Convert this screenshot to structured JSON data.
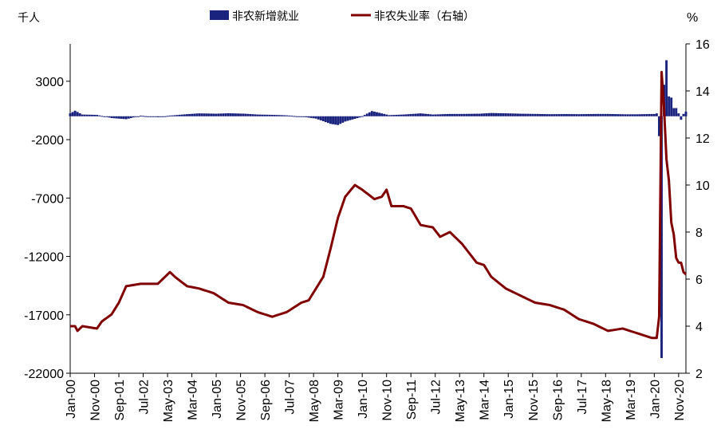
{
  "chart_data": {
    "type": "bar+line",
    "title": "",
    "left_axis": {
      "unit_label": "千人",
      "ticks": [
        3000,
        -2000,
        -7000,
        -12000,
        -17000,
        -22000
      ],
      "range": [
        -22000,
        6200
      ]
    },
    "right_axis": {
      "unit_label": "%",
      "ticks": [
        2,
        4,
        6,
        8,
        10,
        12,
        14,
        16
      ],
      "range": [
        2,
        16
      ]
    },
    "x_tick_labels": [
      "Jan-00",
      "Nov-00",
      "Sep-01",
      "Jul-02",
      "May-03",
      "Mar-04",
      "Jan-05",
      "Nov-05",
      "Sep-06",
      "Jul-07",
      "May-08",
      "Mar-09",
      "Jan-10",
      "Nov-10",
      "Sep-11",
      "Jul-12",
      "May-13",
      "Mar-14",
      "Jan-15",
      "Nov-15",
      "Sep-16",
      "Jul-17",
      "May-18",
      "Mar-19",
      "Jan-20",
      "Nov-20"
    ],
    "x_range": [
      "Jan-00",
      "Feb-21"
    ],
    "legend": {
      "placement": "top",
      "items": [
        {
          "label": "非农新增就业",
          "kind": "bar",
          "color": "#1a237e"
        },
        {
          "label": "非农失业率（右轴）",
          "kind": "line",
          "color": "#800000"
        }
      ]
    },
    "series": [
      {
        "name": "非农新增就业",
        "kind": "bar",
        "axis": "left",
        "color": "#1a237e",
        "unit": "千人",
        "points": [
          [
            "Jan-00",
            250
          ],
          [
            "Mar-00",
            480
          ],
          [
            "Jun-00",
            150
          ],
          [
            "Dec-00",
            120
          ],
          [
            "Jun-01",
            -150
          ],
          [
            "Dec-01",
            -250
          ],
          [
            "Jun-02",
            50
          ],
          [
            "Jan-03",
            -80
          ],
          [
            "Jun-03",
            60
          ],
          [
            "Jan-04",
            180
          ],
          [
            "Jun-04",
            250
          ],
          [
            "Jan-05",
            220
          ],
          [
            "Jun-05",
            260
          ],
          [
            "Jan-06",
            220
          ],
          [
            "Jun-06",
            150
          ],
          [
            "Jan-07",
            120
          ],
          [
            "Jun-07",
            80
          ],
          [
            "Jan-08",
            -50
          ],
          [
            "Jun-08",
            -200
          ],
          [
            "Dec-08",
            -650
          ],
          [
            "Mar-09",
            -750
          ],
          [
            "Jun-09",
            -450
          ],
          [
            "Dec-09",
            -100
          ],
          [
            "May-10",
            450
          ],
          [
            "Dec-10",
            100
          ],
          [
            "Jun-11",
            150
          ],
          [
            "Jan-12",
            250
          ],
          [
            "Jun-12",
            150
          ],
          [
            "Jan-13",
            200
          ],
          [
            "Jun-13",
            200
          ],
          [
            "Jan-14",
            220
          ],
          [
            "Jun-14",
            280
          ],
          [
            "Jan-15",
            250
          ],
          [
            "Jun-15",
            220
          ],
          [
            "Jan-16",
            200
          ],
          [
            "Jun-16",
            180
          ],
          [
            "Jan-17",
            190
          ],
          [
            "Jun-17",
            180
          ],
          [
            "Jan-18",
            200
          ],
          [
            "Jun-18",
            200
          ],
          [
            "Jan-19",
            170
          ],
          [
            "Jun-19",
            170
          ],
          [
            "Jan-20",
            200
          ],
          [
            "Feb-20",
            250
          ],
          [
            "Mar-20",
            -1700
          ],
          [
            "Apr-20",
            -20700
          ],
          [
            "May-20",
            2700
          ],
          [
            "Jun-20",
            4800
          ],
          [
            "Jul-20",
            1700
          ],
          [
            "Aug-20",
            1600
          ],
          [
            "Sep-20",
            700
          ],
          [
            "Oct-20",
            700
          ],
          [
            "Nov-20",
            250
          ],
          [
            "Dec-20",
            -300
          ],
          [
            "Jan-21",
            200
          ],
          [
            "Feb-21",
            400
          ]
        ]
      },
      {
        "name": "非农失业率（右轴）",
        "kind": "line",
        "axis": "right",
        "color": "#800000",
        "unit": "%",
        "points": [
          [
            "Jan-00",
            4.0
          ],
          [
            "Mar-00",
            4.0
          ],
          [
            "Apr-00",
            3.8
          ],
          [
            "Jun-00",
            4.0
          ],
          [
            "Dec-00",
            3.9
          ],
          [
            "Feb-01",
            4.2
          ],
          [
            "Jun-01",
            4.5
          ],
          [
            "Sep-01",
            5.0
          ],
          [
            "Dec-01",
            5.7
          ],
          [
            "Jun-02",
            5.8
          ],
          [
            "Jan-03",
            5.8
          ],
          [
            "Jun-03",
            6.3
          ],
          [
            "Aug-03",
            6.1
          ],
          [
            "Jan-04",
            5.7
          ],
          [
            "Jun-04",
            5.6
          ],
          [
            "Dec-04",
            5.4
          ],
          [
            "Jun-05",
            5.0
          ],
          [
            "Dec-05",
            4.9
          ],
          [
            "Jun-06",
            4.6
          ],
          [
            "Dec-06",
            4.4
          ],
          [
            "Jun-07",
            4.6
          ],
          [
            "Dec-07",
            5.0
          ],
          [
            "Mar-08",
            5.1
          ],
          [
            "Jun-08",
            5.6
          ],
          [
            "Sep-08",
            6.1
          ],
          [
            "Dec-08",
            7.3
          ],
          [
            "Mar-09",
            8.6
          ],
          [
            "Jun-09",
            9.5
          ],
          [
            "Oct-09",
            10.0
          ],
          [
            "Jan-10",
            9.8
          ],
          [
            "Jun-10",
            9.4
          ],
          [
            "Sep-10",
            9.5
          ],
          [
            "Nov-10",
            9.8
          ],
          [
            "Jan-11",
            9.1
          ],
          [
            "Jun-11",
            9.1
          ],
          [
            "Sep-11",
            9.0
          ],
          [
            "Jan-12",
            8.3
          ],
          [
            "Jun-12",
            8.2
          ],
          [
            "Sep-12",
            7.8
          ],
          [
            "Jan-13",
            8.0
          ],
          [
            "Jun-13",
            7.5
          ],
          [
            "Dec-13",
            6.7
          ],
          [
            "Mar-14",
            6.6
          ],
          [
            "Jun-14",
            6.1
          ],
          [
            "Dec-14",
            5.6
          ],
          [
            "Jun-15",
            5.3
          ],
          [
            "Dec-15",
            5.0
          ],
          [
            "Jun-16",
            4.9
          ],
          [
            "Dec-16",
            4.7
          ],
          [
            "Jun-17",
            4.3
          ],
          [
            "Dec-17",
            4.1
          ],
          [
            "Jun-18",
            3.8
          ],
          [
            "Dec-18",
            3.9
          ],
          [
            "Jun-19",
            3.7
          ],
          [
            "Dec-19",
            3.5
          ],
          [
            "Feb-20",
            3.5
          ],
          [
            "Mar-20",
            4.4
          ],
          [
            "Apr-20",
            14.8
          ],
          [
            "May-20",
            13.3
          ],
          [
            "Jun-20",
            11.1
          ],
          [
            "Jul-20",
            10.2
          ],
          [
            "Aug-20",
            8.4
          ],
          [
            "Sep-20",
            7.9
          ],
          [
            "Oct-20",
            6.9
          ],
          [
            "Nov-20",
            6.7
          ],
          [
            "Dec-20",
            6.7
          ],
          [
            "Jan-21",
            6.3
          ],
          [
            "Feb-21",
            6.2
          ]
        ]
      }
    ]
  }
}
